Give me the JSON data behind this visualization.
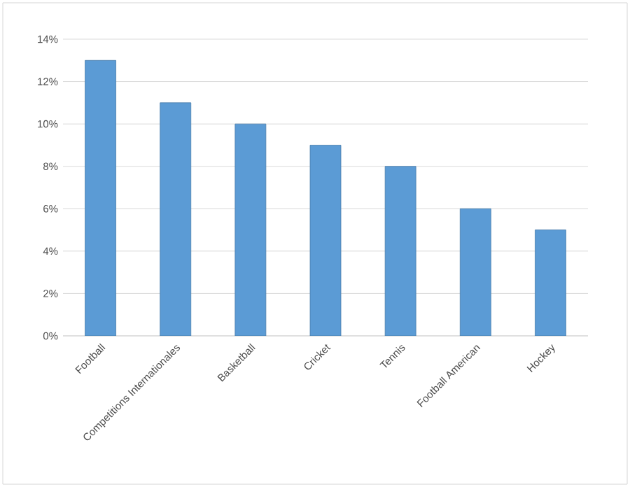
{
  "chart_data": {
    "type": "bar",
    "categories": [
      "Football",
      "Competitions Internationales",
      "Basketball",
      "Cricket",
      "Tennis",
      "Football American",
      "Hockey"
    ],
    "values": [
      13,
      11,
      10,
      9,
      8,
      6,
      5
    ],
    "color": "#5b9bd5",
    "ylim": [
      0,
      14
    ],
    "yticks": [
      {
        "value": 0,
        "label": "0%"
      },
      {
        "value": 2,
        "label": "2%"
      },
      {
        "value": 4,
        "label": "4%"
      },
      {
        "value": 6,
        "label": "6%"
      },
      {
        "value": 8,
        "label": "8%"
      },
      {
        "value": 10,
        "label": "10%"
      },
      {
        "value": 12,
        "label": "12%"
      },
      {
        "value": 14,
        "label": "14%"
      }
    ],
    "grid": "y"
  }
}
